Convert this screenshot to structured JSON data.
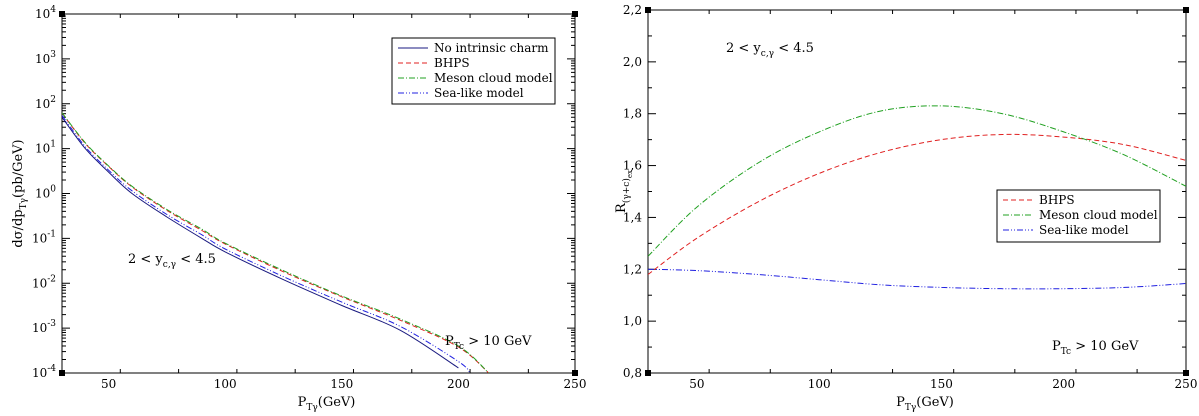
{
  "chart_data": [
    {
      "type": "line",
      "scale": {
        "x": "linear",
        "y": "log"
      },
      "xlim": [
        30,
        250
      ],
      "ylim": [
        0.0001,
        10000
      ],
      "x_ticks": [
        50,
        100,
        150,
        200,
        250
      ],
      "y_tick_labels": [
        {
          "value": 0.0001,
          "base": "10",
          "exp": "-4"
        },
        {
          "value": 0.001,
          "base": "10",
          "exp": "-3"
        },
        {
          "value": 0.01,
          "base": "10",
          "exp": "-2"
        },
        {
          "value": 0.1,
          "base": "10",
          "exp": "-1"
        },
        {
          "value": 1,
          "base": "10",
          "exp": "0"
        },
        {
          "value": 10,
          "base": "10",
          "exp": "1"
        },
        {
          "value": 100,
          "base": "10",
          "exp": "2"
        },
        {
          "value": 1000,
          "base": "10",
          "exp": "3"
        },
        {
          "value": 10000,
          "base": "10",
          "exp": "4"
        }
      ],
      "xlabel": {
        "main": "P",
        "sub": "Tγ",
        "tail": "(GeV)"
      },
      "ylabel": {
        "pre": "dσ/dp",
        "sub": "Tγ",
        "tail": "(pb/GeV)"
      },
      "annotations": [
        {
          "id": "rapidity",
          "parts": [
            "2 < y",
            "c,γ",
            " < 4.5"
          ]
        },
        {
          "id": "ptcut",
          "parts": [
            "P",
            "Tc",
            " > 10 GeV"
          ]
        }
      ],
      "legend": {
        "position": "top-right"
      },
      "series": [
        {
          "name": "No intrinsic charm",
          "color": "#1a1a80",
          "dash": "solid",
          "x": [
            30,
            40,
            50,
            60,
            75,
            90,
            100,
            125,
            150,
            175,
            200
          ],
          "y": [
            50,
            10,
            3,
            1,
            0.3,
            0.1,
            0.05,
            0.012,
            0.0032,
            0.0009,
            0.00013
          ]
        },
        {
          "name": "BHPS",
          "color": "#e02020",
          "dash": "5,3",
          "x": [
            30,
            40,
            50,
            60,
            75,
            90,
            100,
            125,
            150,
            175,
            200,
            213
          ],
          "y": [
            62,
            13,
            4,
            1.4,
            0.42,
            0.15,
            0.075,
            0.018,
            0.005,
            0.0015,
            0.00038,
            0.0001
          ]
        },
        {
          "name": "Meson cloud model",
          "color": "#20a020",
          "dash": "6,2,1,2",
          "x": [
            30,
            40,
            50,
            60,
            75,
            90,
            100,
            125,
            150,
            175,
            200,
            213
          ],
          "y": [
            63,
            13.5,
            4.1,
            1.45,
            0.44,
            0.16,
            0.078,
            0.019,
            0.0052,
            0.0016,
            0.0004,
            0.0001
          ]
        },
        {
          "name": "Sea-like model",
          "color": "#2020e0",
          "dash": "6,2,1,2,1,2",
          "x": [
            30,
            40,
            50,
            60,
            75,
            90,
            100,
            125,
            150,
            175,
            200,
            205
          ],
          "y": [
            55,
            11,
            3.3,
            1.15,
            0.34,
            0.12,
            0.058,
            0.014,
            0.0038,
            0.0011,
            0.00018,
            0.0001
          ]
        }
      ]
    },
    {
      "type": "line",
      "scale": {
        "x": "linear",
        "y": "linear"
      },
      "xlim": [
        30,
        250
      ],
      "ylim": [
        0.8,
        2.2
      ],
      "x_ticks": [
        50,
        100,
        150,
        200,
        250
      ],
      "y_tick_labels": [
        {
          "value": 0.8,
          "text": "0,8"
        },
        {
          "value": 1.0,
          "text": "1,0"
        },
        {
          "value": 1.2,
          "text": "1,2"
        },
        {
          "value": 1.4,
          "text": "1,4"
        },
        {
          "value": 1.6,
          "text": "1,6"
        },
        {
          "value": 1.8,
          "text": "1,8"
        },
        {
          "value": 2.0,
          "text": "2,0"
        },
        {
          "value": 2.2,
          "text": "2,2"
        }
      ],
      "xlabel": {
        "main": "P",
        "sub": "Tγ",
        "tail": "(GeV)"
      },
      "ylabel": {
        "pre": "R",
        "sub": "(γ+c)",
        "subsub": "ex"
      },
      "annotations": [
        {
          "id": "rapidity",
          "parts": [
            "2 < y",
            "c,γ",
            " < 4.5"
          ]
        },
        {
          "id": "ptcut",
          "parts": [
            "P",
            "Tc",
            " > 10 GeV"
          ]
        }
      ],
      "legend": {
        "position": "center-right"
      },
      "series": [
        {
          "name": "BHPS",
          "color": "#e02020",
          "dash": "5,3",
          "x": [
            30,
            50,
            75,
            100,
            125,
            150,
            175,
            200,
            225,
            250
          ],
          "y": [
            1.18,
            1.32,
            1.46,
            1.57,
            1.65,
            1.7,
            1.72,
            1.71,
            1.68,
            1.62
          ]
        },
        {
          "name": "Meson cloud model",
          "color": "#20a020",
          "dash": "6,2,1,2",
          "x": [
            30,
            50,
            75,
            100,
            125,
            150,
            175,
            200,
            225,
            250
          ],
          "y": [
            1.25,
            1.44,
            1.61,
            1.73,
            1.81,
            1.83,
            1.8,
            1.73,
            1.64,
            1.52
          ]
        },
        {
          "name": "Sea-like model",
          "color": "#2020e0",
          "dash": "6,2,1,2,1,2",
          "x": [
            30,
            50,
            75,
            100,
            125,
            150,
            175,
            200,
            225,
            250
          ],
          "y": [
            1.2,
            1.195,
            1.18,
            1.16,
            1.14,
            1.13,
            1.125,
            1.125,
            1.13,
            1.145
          ]
        }
      ]
    }
  ]
}
